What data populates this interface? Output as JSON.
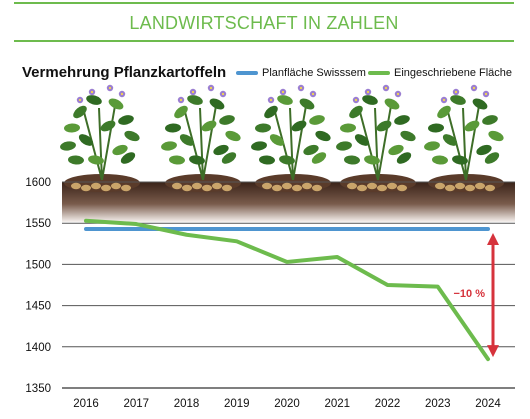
{
  "header": {
    "title": "LANDWIRTSCHAFT IN ZAHLEN"
  },
  "colors": {
    "accent_green": "#6dbb4d",
    "plan_blue": "#4e95d0",
    "annotation_red": "#d6333c",
    "soil_brown": "#4a2f22"
  },
  "chart_data": {
    "type": "line",
    "title": "Vermehrung Pflanzkartoffeln",
    "xlabel": "",
    "ylabel": "",
    "x": [
      2016,
      2017,
      2018,
      2019,
      2020,
      2021,
      2022,
      2023,
      2024
    ],
    "x_tick_labels": [
      "2016",
      "2017",
      "2018",
      "2019",
      "2020",
      "2021",
      "2022",
      "2023",
      "2024"
    ],
    "ylim": [
      1350,
      1600
    ],
    "y_ticks": [
      1350,
      1400,
      1450,
      1500,
      1550,
      1600
    ],
    "y_tick_labels": [
      "1350",
      "1400",
      "1450",
      "1500",
      "1550",
      "1600"
    ],
    "grid": "horizontal",
    "legend_position": "top-right",
    "series": [
      {
        "name": "Planfläche Swisssem",
        "color": "#4e95d0",
        "values": [
          1543,
          1543,
          1543,
          1543,
          1543,
          1543,
          1543,
          1543,
          1543
        ]
      },
      {
        "name": "Eingeschriebene Fläche",
        "color": "#6dbb4d",
        "values": [
          1553,
          1549,
          1536,
          1528,
          1503,
          1509,
          1475,
          1473,
          1385
        ]
      }
    ],
    "annotations": [
      {
        "text": "−10 %",
        "from_value": 1543,
        "to_value": 1385,
        "at_x": 2024
      }
    ]
  }
}
